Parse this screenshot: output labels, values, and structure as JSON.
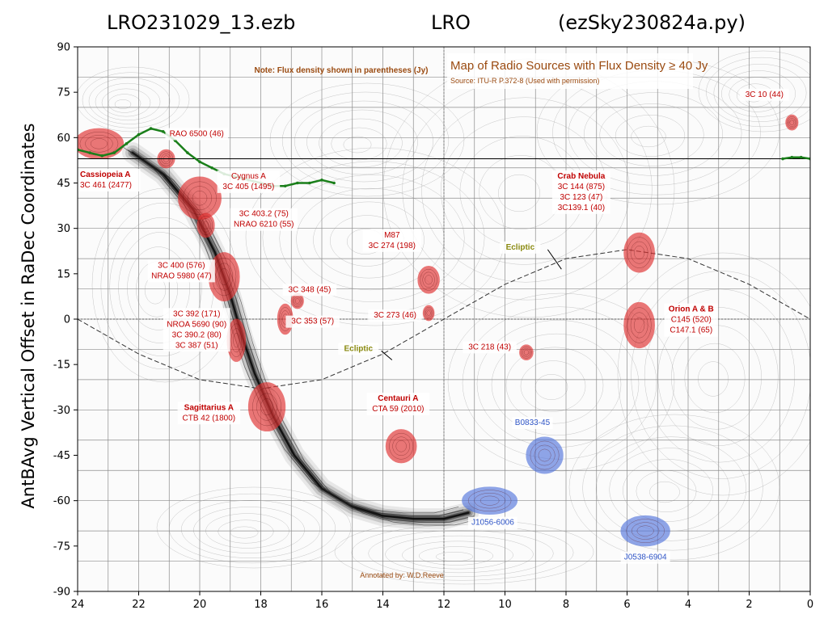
{
  "header": {
    "left": "LRO231029_13.ezb",
    "center": "LRO",
    "right": "(ezSky230824a.py)"
  },
  "chart_data": {
    "type": "line",
    "title": "Map of Radio Sources with Flux Density ≥ 40 Jy",
    "subtitle": "Source: ITU-R P.372-8 (Used with permission)",
    "note": "Note: Flux density shown in parentheses (Jy)",
    "credit": "Annotated by: W.D.Reeve",
    "xlabel": "",
    "ylabel": "AntBAvg Vertical Offset in RaDec Coordinates",
    "xlim": [
      24,
      0
    ],
    "ylim": [
      -90,
      90
    ],
    "x_ticks": [
      24,
      22,
      20,
      18,
      16,
      14,
      12,
      10,
      8,
      6,
      4,
      2,
      0
    ],
    "y_ticks": [
      90,
      75,
      60,
      45,
      30,
      15,
      0,
      -15,
      -30,
      -45,
      -60,
      -75,
      -90
    ],
    "grid": true,
    "reference_line_y": 53,
    "series": [
      {
        "color": "#1a7f1a",
        "x": [
          24.0,
          23.6,
          23.2,
          22.8,
          22.4,
          22.0,
          21.6,
          21.2,
          20.8,
          20.4,
          20.0,
          19.6,
          19.2,
          18.8,
          18.4,
          18.0,
          17.6,
          17.2,
          16.8,
          16.4,
          16.0,
          15.6
        ],
        "y": [
          56,
          55,
          54,
          55,
          58,
          61,
          63,
          62,
          59,
          55,
          52,
          50,
          48,
          47,
          46,
          45,
          44,
          44,
          45,
          45,
          46,
          45
        ]
      },
      {
        "color": "#1a7f1a",
        "x": [
          0.9,
          0.6,
          0.3,
          0.0
        ],
        "y": [
          53,
          53.5,
          53.5,
          53
        ]
      }
    ],
    "ecliptic": {
      "color": "#333333",
      "x": [
        24,
        22,
        20,
        18,
        16,
        14,
        12,
        10,
        8,
        6,
        4,
        2,
        0
      ],
      "y": [
        0,
        -11.5,
        -20,
        -23,
        -20,
        -11.5,
        0,
        11.5,
        20,
        23,
        20,
        11.5,
        0
      ]
    },
    "sources": [
      {
        "name": "Cassiopeia A",
        "x": 23.3,
        "y": 58,
        "rx": 0.8,
        "ry": 5,
        "color": "#e03030"
      },
      {
        "name": "",
        "x": 21.1,
        "y": 53,
        "rx": 0.28,
        "ry": 3,
        "color": "#e03030"
      },
      {
        "name": "Cygnus A",
        "x": 20.0,
        "y": 40,
        "rx": 0.7,
        "ry": 7,
        "color": "#e03030"
      },
      {
        "name": "3C 403.2",
        "x": 19.8,
        "y": 31,
        "rx": 0.28,
        "ry": 4,
        "color": "#e03030"
      },
      {
        "name": "3C 400",
        "x": 19.2,
        "y": 14,
        "rx": 0.5,
        "ry": 8,
        "color": "#e03030"
      },
      {
        "name": "3C 392",
        "x": 18.8,
        "y": -7,
        "rx": 0.3,
        "ry": 7,
        "color": "#e03030"
      },
      {
        "name": "Sagittarius A",
        "x": 17.8,
        "y": -29,
        "rx": 0.6,
        "ry": 8,
        "color": "#e03030"
      },
      {
        "name": "3C 348",
        "x": 16.8,
        "y": 6,
        "rx": 0.2,
        "ry": 2.5,
        "color": "#e03030"
      },
      {
        "name": "3C 353",
        "x": 17.2,
        "y": 0,
        "rx": 0.25,
        "ry": 5,
        "color": "#e03030"
      },
      {
        "name": "M87",
        "x": 12.5,
        "y": 13,
        "rx": 0.35,
        "ry": 4.5,
        "color": "#e03030"
      },
      {
        "name": "3C 273",
        "x": 12.5,
        "y": 2,
        "rx": 0.18,
        "ry": 2.5,
        "color": "#e03030"
      },
      {
        "name": "Centauri A",
        "x": 13.4,
        "y": -42,
        "rx": 0.5,
        "ry": 5.5,
        "color": "#e03030"
      },
      {
        "name": "3C 218",
        "x": 9.3,
        "y": -11,
        "rx": 0.22,
        "ry": 2.5,
        "color": "#e03030"
      },
      {
        "name": "Crab Nebula",
        "x": 5.6,
        "y": 22,
        "rx": 0.5,
        "ry": 6.5,
        "color": "#e03030"
      },
      {
        "name": "Orion A & B",
        "x": 5.6,
        "y": -2,
        "rx": 0.5,
        "ry": 7.5,
        "color": "#e03030"
      },
      {
        "name": "3C 10",
        "x": 0.6,
        "y": 65,
        "rx": 0.2,
        "ry": 2.5,
        "color": "#e03030"
      },
      {
        "name": "B0833-45",
        "x": 8.7,
        "y": -45,
        "rx": 0.6,
        "ry": 6,
        "color": "#5577dd"
      },
      {
        "name": "J1056-6006",
        "x": 10.5,
        "y": -60,
        "rx": 0.9,
        "ry": 4.5,
        "color": "#5577dd"
      },
      {
        "name": "J0538-6904",
        "x": 5.4,
        "y": -70,
        "rx": 0.8,
        "ry": 5,
        "color": "#5577dd"
      }
    ],
    "labels": [
      {
        "lines": [
          "RAO 6500 (46)"
        ],
        "x": 20.1,
        "y": 60.5,
        "color": "#c00000",
        "bold": false,
        "anchor": "middle"
      },
      {
        "lines": [
          "Cassiopeia A",
          "3C 461 (2477)"
        ],
        "x": 24.0,
        "y": 47,
        "color": "#c00000",
        "bold": true,
        "anchor": "start"
      },
      {
        "lines": [
          "Cygnus A",
          "3C 405 (1495)"
        ],
        "x": 18.4,
        "y": 46.5,
        "color": "#c00000",
        "bold": false,
        "anchor": "middle"
      },
      {
        "lines": [
          "3C 403.2 (75)",
          "NRAO 6210 (55)"
        ],
        "x": 17.9,
        "y": 34,
        "color": "#c00000",
        "bold": false,
        "anchor": "middle"
      },
      {
        "lines": [
          "3C 400 (576)",
          "NRAO 5980 (47)"
        ],
        "x": 20.6,
        "y": 17,
        "color": "#c00000",
        "bold": false,
        "anchor": "middle"
      },
      {
        "lines": [
          "3C 392 (171)",
          "NROA 5690 (90)",
          "3C 390.2 (80)",
          "3C 387  (51)"
        ],
        "x": 20.1,
        "y": 1,
        "color": "#c00000",
        "bold": false,
        "anchor": "middle"
      },
      {
        "lines": [
          "Sagittarius A",
          "CTB 42 (1800)"
        ],
        "x": 19.7,
        "y": -30,
        "color": "#c00000",
        "bold": true,
        "anchor": "middle"
      },
      {
        "lines": [
          "3C 348 (45)"
        ],
        "x": 16.4,
        "y": 9,
        "color": "#c00000",
        "bold": false,
        "anchor": "middle"
      },
      {
        "lines": [
          "3C 353 (57)"
        ],
        "x": 16.3,
        "y": -1.5,
        "color": "#c00000",
        "bold": false,
        "anchor": "middle"
      },
      {
        "lines": [
          "M87",
          "3C 274 (198)"
        ],
        "x": 13.7,
        "y": 27,
        "color": "#c00000",
        "bold": false,
        "anchor": "middle"
      },
      {
        "lines": [
          "3C 273 (46)"
        ],
        "x": 13.6,
        "y": 0.5,
        "color": "#c00000",
        "bold": false,
        "anchor": "middle"
      },
      {
        "lines": [
          "Centauri A",
          "CTA 59 (2010)"
        ],
        "x": 13.5,
        "y": -27,
        "color": "#c00000",
        "bold": true,
        "anchor": "middle"
      },
      {
        "lines": [
          "3C 218 (43)"
        ],
        "x": 10.5,
        "y": -10,
        "color": "#c00000",
        "bold": false,
        "anchor": "middle"
      },
      {
        "lines": [
          "Crab Nebula",
          "3C 144 (875)",
          "3C 123 (47)",
          "3C139.1 (40)"
        ],
        "x": 7.5,
        "y": 46.5,
        "color": "#c00000",
        "bold": true,
        "anchor": "middle"
      },
      {
        "lines": [
          "Orion A & B",
          "C145 (520)",
          "C147.1 (65)"
        ],
        "x": 3.9,
        "y": 2.5,
        "color": "#c00000",
        "bold": true,
        "anchor": "middle"
      },
      {
        "lines": [
          "3C 10 (44)"
        ],
        "x": 1.5,
        "y": 73.5,
        "color": "#c00000",
        "bold": false,
        "anchor": "middle"
      },
      {
        "lines": [
          "Ecliptic"
        ],
        "x": 14.8,
        "y": -10.5,
        "color": "#8a8a10",
        "bold": true,
        "anchor": "middle"
      },
      {
        "lines": [
          "Ecliptic"
        ],
        "x": 9.5,
        "y": 23,
        "color": "#8a8a10",
        "bold": true,
        "anchor": "middle"
      },
      {
        "lines": [
          "B0833-45"
        ],
        "x": 9.1,
        "y": -35,
        "color": "#2e54c6",
        "bold": false,
        "anchor": "middle"
      },
      {
        "lines": [
          "J1056-6006"
        ],
        "x": 10.4,
        "y": -68,
        "color": "#2e54c6",
        "bold": false,
        "anchor": "middle"
      },
      {
        "lines": [
          "J0538-6904"
        ],
        "x": 5.4,
        "y": -79.5,
        "color": "#2e54c6",
        "bold": false,
        "anchor": "middle"
      }
    ]
  }
}
